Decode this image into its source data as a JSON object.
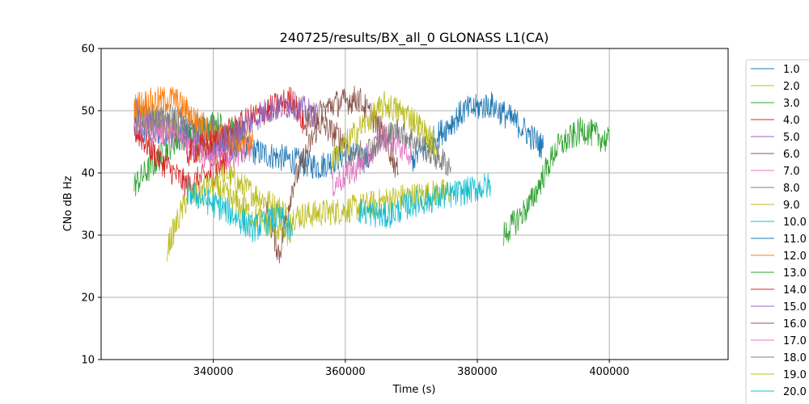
{
  "chart_data": {
    "type": "line",
    "title": "240725/results/BX_all_0 GLONASS L1(CA)",
    "xlabel": "Time (s)",
    "ylabel": "CNo dB Hz",
    "xlim": [
      323000,
      418000
    ],
    "ylim": [
      10,
      60
    ],
    "xticks": [
      340000,
      360000,
      380000,
      400000
    ],
    "yticks": [
      10,
      20,
      30,
      40,
      50,
      60
    ],
    "grid": true,
    "legend_position": "outside-right",
    "series": [
      {
        "name": "1.0",
        "color": "#1f77b4",
        "x": [
          328000,
          336000,
          344000,
          352000,
          356000,
          360000,
          364000
        ],
        "y": [
          47,
          46,
          44,
          42,
          41,
          43,
          42
        ]
      },
      {
        "name": "2.0",
        "color": "#bcbd22",
        "x": [
          328000,
          336000,
          344000,
          352000,
          360000,
          368000,
          376000
        ],
        "y": [
          50,
          46,
          38,
          33,
          34,
          36,
          37
        ]
      },
      {
        "name": "3.0",
        "color": "#2ca02c",
        "x": [
          328000,
          334000,
          340000,
          345000
        ],
        "y": [
          38,
          45,
          48,
          46
        ]
      },
      {
        "name": "4.0",
        "color": "#d62728",
        "x": [
          328000,
          332000,
          336000,
          340000,
          344000
        ],
        "y": [
          47,
          42,
          38,
          40,
          45
        ]
      },
      {
        "name": "5.0",
        "color": "#9467bd",
        "x": [
          328000,
          334000,
          340000,
          344000
        ],
        "y": [
          50,
          47,
          44,
          45
        ]
      },
      {
        "name": "6.0",
        "color": "#8c564b",
        "x": [
          348000,
          350000,
          352000,
          356000,
          360000
        ],
        "y": [
          34,
          27,
          38,
          48,
          45
        ]
      },
      {
        "name": "7.0",
        "color": "#e377c2",
        "x": [
          328000,
          334000,
          340000,
          346000
        ],
        "y": [
          48,
          46,
          42,
          44
        ]
      },
      {
        "name": "8.0",
        "color": "#7f7f7f",
        "x": [
          328000,
          334000,
          340000,
          344000
        ],
        "y": [
          49,
          49,
          47,
          44
        ]
      },
      {
        "name": "9.0",
        "color": "#bcbd22",
        "x": [
          333000,
          336000,
          340000,
          346000,
          352000
        ],
        "y": [
          28,
          36,
          38,
          33,
          30
        ]
      },
      {
        "name": "10.0",
        "color": "#17becf",
        "x": [
          336000,
          342000,
          346000,
          350000,
          352000
        ],
        "y": [
          37,
          34,
          31,
          33,
          30
        ]
      },
      {
        "name": "11.0",
        "color": "#1f77b4",
        "x": [
          370000,
          374000,
          378000,
          382000,
          386000,
          390000
        ],
        "y": [
          42,
          46,
          50,
          51,
          48,
          44
        ]
      },
      {
        "name": "12.0",
        "color": "#ff7f0e",
        "x": [
          328000,
          334000,
          340000,
          346000
        ],
        "y": [
          51,
          52,
          46,
          45
        ]
      },
      {
        "name": "13.0",
        "color": "#2ca02c",
        "x": [
          384000,
          388000,
          392000,
          396000,
          400000
        ],
        "y": [
          30,
          35,
          44,
          47,
          45
        ]
      },
      {
        "name": "14.0",
        "color": "#d62728",
        "x": [
          336000,
          340000,
          346000,
          352000,
          354000
        ],
        "y": [
          43,
          45,
          49,
          52,
          47
        ]
      },
      {
        "name": "15.0",
        "color": "#9467bd",
        "x": [
          340000,
          344000,
          348000,
          352000,
          356000
        ],
        "y": [
          44,
          47,
          50,
          51,
          49
        ]
      },
      {
        "name": "16.0",
        "color": "#8c564b",
        "x": [
          354000,
          358000,
          362000,
          366000,
          368000
        ],
        "y": [
          48,
          51,
          52,
          46,
          40
        ]
      },
      {
        "name": "17.0",
        "color": "#e377c2",
        "x": [
          358000,
          362000,
          366000,
          370000
        ],
        "y": [
          38,
          41,
          46,
          43
        ]
      },
      {
        "name": "18.0",
        "color": "#7f7f7f",
        "x": [
          360000,
          364000,
          368000,
          372000,
          376000
        ],
        "y": [
          43,
          44,
          47,
          44,
          41
        ]
      },
      {
        "name": "19.0",
        "color": "#bcbd22",
        "x": [
          358000,
          362000,
          366000,
          370000,
          374000
        ],
        "y": [
          42,
          47,
          51,
          49,
          44
        ]
      },
      {
        "name": "20.0",
        "color": "#17becf",
        "x": [
          362000,
          366000,
          370000,
          374000,
          378000,
          382000
        ],
        "y": [
          34,
          33,
          35,
          36,
          37,
          38
        ]
      }
    ]
  }
}
